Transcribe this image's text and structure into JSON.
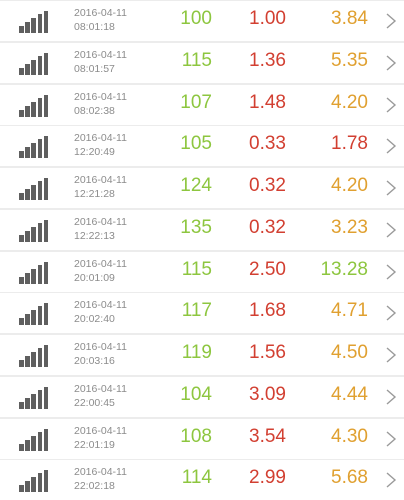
{
  "colors": {
    "green": "#8dc63f",
    "red": "#d23f31",
    "orange": "#e0a030",
    "gray_text": "#8c8c8c",
    "icon": "#5f5f5f",
    "separator": "#ececec"
  },
  "icons": {
    "signal": "signal-bars-icon",
    "chevron": "chevron-right-icon"
  },
  "rows": [
    {
      "date": "2016-04-11",
      "time": "08:01:18",
      "v1": "100",
      "v2": "1.00",
      "v3": "3.84",
      "v3_color": "orange"
    },
    {
      "date": "2016-04-11",
      "time": "08:01:57",
      "v1": "115",
      "v2": "1.36",
      "v3": "5.35",
      "v3_color": "orange"
    },
    {
      "date": "2016-04-11",
      "time": "08:02:38",
      "v1": "107",
      "v2": "1.48",
      "v3": "4.20",
      "v3_color": "orange"
    },
    {
      "date": "2016-04-11",
      "time": "12:20:49",
      "v1": "105",
      "v2": "0.33",
      "v3": "1.78",
      "v3_color": "red"
    },
    {
      "date": "2016-04-11",
      "time": "12:21:28",
      "v1": "124",
      "v2": "0.32",
      "v3": "4.20",
      "v3_color": "orange"
    },
    {
      "date": "2016-04-11",
      "time": "12:22:13",
      "v1": "135",
      "v2": "0.32",
      "v3": "3.23",
      "v3_color": "orange"
    },
    {
      "date": "2016-04-11",
      "time": "20:01:09",
      "v1": "115",
      "v2": "2.50",
      "v3": "13.28",
      "v3_color": "green"
    },
    {
      "date": "2016-04-11",
      "time": "20:02:40",
      "v1": "117",
      "v2": "1.68",
      "v3": "4.71",
      "v3_color": "orange"
    },
    {
      "date": "2016-04-11",
      "time": "20:03:16",
      "v1": "119",
      "v2": "1.56",
      "v3": "4.50",
      "v3_color": "orange"
    },
    {
      "date": "2016-04-11",
      "time": "22:00:45",
      "v1": "104",
      "v2": "3.09",
      "v3": "4.44",
      "v3_color": "orange"
    },
    {
      "date": "2016-04-11",
      "time": "22:01:19",
      "v1": "108",
      "v2": "3.54",
      "v3": "4.30",
      "v3_color": "orange"
    },
    {
      "date": "2016-04-11",
      "time": "22:02:18",
      "v1": "114",
      "v2": "2.99",
      "v3": "5.68",
      "v3_color": "orange"
    }
  ]
}
